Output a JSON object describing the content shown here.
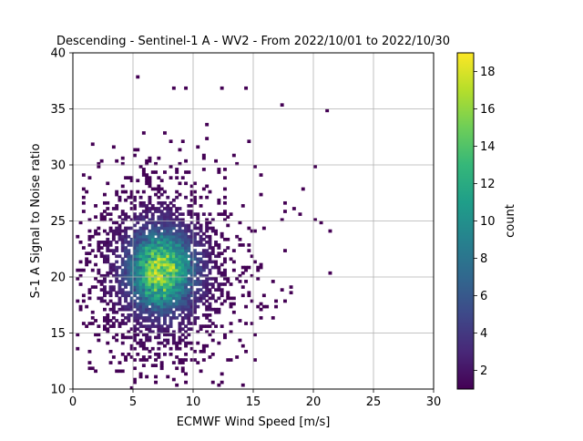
{
  "chart_data": {
    "type": "heatmap",
    "title": "Descending - Sentinel-1 A - WV2 - From 2022/10/01 to 2022/10/30",
    "xlabel": "ECMWF Wind Speed [m/s]",
    "ylabel": "S-1 A Signal to Noise ratio",
    "xlim": [
      0,
      30
    ],
    "ylim": [
      10,
      40
    ],
    "xticks": [
      "0",
      "5",
      "10",
      "15",
      "20",
      "25",
      "30"
    ],
    "yticks": [
      "10",
      "15",
      "20",
      "25",
      "30",
      "35",
      "40"
    ],
    "grid": true,
    "bin_size": {
      "x": 0.25,
      "y": 0.25
    },
    "colormap": "viridis",
    "colorbar": {
      "label": "count",
      "range": [
        1,
        19
      ],
      "ticks": [
        "2",
        "4",
        "6",
        "8",
        "10",
        "12",
        "14",
        "16",
        "18"
      ],
      "colors": [
        "#440154",
        "#482878",
        "#3e4989",
        "#31688e",
        "#26828e",
        "#1f9e89",
        "#35b779",
        "#6ece58",
        "#b5de2b",
        "#fde725"
      ]
    },
    "distribution": {
      "core_center": [
        7.2,
        20.5
      ],
      "core_spread": [
        2.6,
        3.4
      ],
      "peak_count": 19,
      "outer_extent_x": [
        0.3,
        21.5
      ],
      "outer_extent_y": [
        10.2,
        38
      ]
    },
    "outliers": [
      [
        5.25,
        37.75
      ],
      [
        8.25,
        36.75
      ],
      [
        12.25,
        36.75
      ],
      [
        14.25,
        36.75
      ],
      [
        17.25,
        35.25
      ],
      [
        21.0,
        34.75
      ],
      [
        20.0,
        29.75
      ],
      [
        19.0,
        27.75
      ],
      [
        20.5,
        24.75
      ],
      [
        20.0,
        25.0
      ],
      [
        21.25,
        24.0
      ],
      [
        21.25,
        20.25
      ],
      [
        17.5,
        26.5
      ],
      [
        18.25,
        26.0
      ],
      [
        18.75,
        25.5
      ],
      [
        15.0,
        12.5
      ],
      [
        18.0,
        19.0
      ],
      [
        15.5,
        17.0
      ],
      [
        13.0,
        15.0
      ],
      [
        11.5,
        13.0
      ]
    ]
  }
}
